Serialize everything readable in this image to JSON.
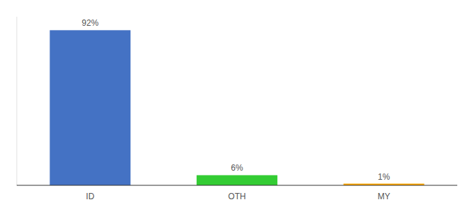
{
  "chart_data": {
    "type": "bar",
    "categories": [
      "ID",
      "OTH",
      "MY"
    ],
    "values": [
      92,
      6,
      1
    ],
    "value_labels": [
      "92%",
      "6%",
      "1%"
    ],
    "colors": [
      "#4472C4",
      "#33CC33",
      "#FFA500"
    ],
    "ylim": [
      0,
      100
    ],
    "data_labels": true,
    "tick_labels": "x"
  }
}
